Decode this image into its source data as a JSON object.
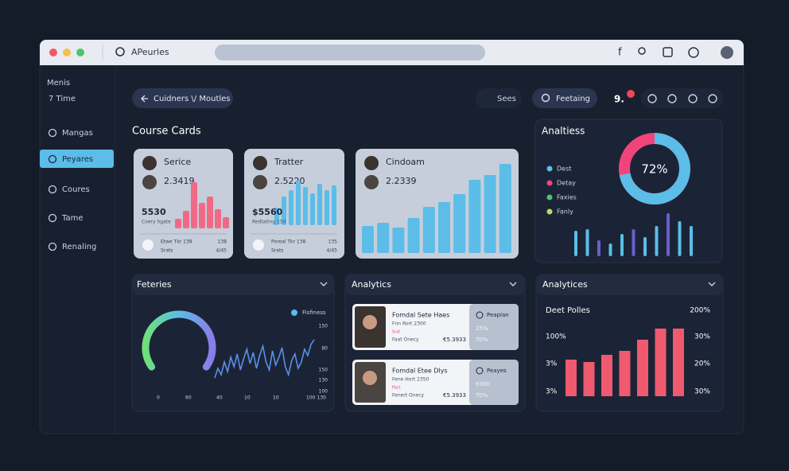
{
  "browser": {
    "address": "APeurles"
  },
  "sidebar": {
    "heading": [
      "Menis",
      "7 Time"
    ],
    "items": [
      "Mangas",
      "Peyares",
      "Coures",
      "Tame",
      "Renaling"
    ]
  },
  "header": {
    "back": "Cuidners \\/ Moutles",
    "search": "Sees",
    "filter": "Feetaing",
    "count": "9."
  },
  "course_cards": {
    "title": "Course Cards",
    "cards": [
      {
        "name": "Serice",
        "value": "2.3419",
        "stat": "5530",
        "caption": "Coery hgate",
        "footer": "Etwe Tkr 138",
        "footer_sub": "Srats",
        "meta": "138",
        "meta_sub": "4/45",
        "bars": [
          12,
          22,
          58,
          32,
          40,
          24,
          14
        ]
      },
      {
        "name": "Tratter",
        "value": "2.5220",
        "stat": "$5560",
        "caption": "Redtating 150",
        "footer": "Poreal Tkr 138",
        "footer_sub": "Srats",
        "meta": "135",
        "meta_sub": "4/45",
        "bars": [
          22,
          36,
          44,
          56,
          48,
          40,
          52,
          44,
          50
        ]
      },
      {
        "name": "Cindoam",
        "value": "2.2339",
        "bars": [
          34,
          38,
          32,
          44,
          58,
          64,
          74,
          92,
          98,
          112
        ]
      }
    ]
  },
  "analytics": {
    "title": "Analtiess",
    "donut": {
      "value": 72,
      "value_label": "72%"
    },
    "legend": [
      "Dest",
      "Detay",
      "Faxies",
      "Fanly"
    ],
    "bars": [
      32,
      34,
      20,
      16,
      28,
      34,
      24,
      38,
      54,
      44,
      38
    ]
  },
  "trends": {
    "title": "Feteries",
    "legend": "Fisfiness",
    "line": [
      10,
      22,
      14,
      30,
      18,
      36,
      24,
      40,
      20,
      34,
      46,
      28,
      42,
      22,
      38,
      50,
      30,
      20,
      44,
      26,
      36,
      48,
      24,
      14,
      32,
      40,
      22,
      30,
      46,
      38,
      52,
      58
    ],
    "x_labels": [
      "0",
      "60",
      "40",
      "10",
      "10",
      "100",
      "130"
    ],
    "y_labels": [
      "150",
      "80",
      "150",
      "130",
      "100"
    ]
  },
  "list": {
    "title": "Analytics",
    "items": [
      {
        "title": "Fomdal Sete Haes",
        "sub": "Fnn Rort 2300",
        "tag": "Srat",
        "meta": "Faat Onecy",
        "price": "€5.3933",
        "badge": "Peapian",
        "stat": "25%",
        "stat_sub": "T0%"
      },
      {
        "title": "Fomdal Etee Dlys",
        "sub": "Fene Hort 2350",
        "tag": "Pact",
        "meta": "Fenert Onecy",
        "price": "€5.3933",
        "badge": "Peayes",
        "stat": "€080",
        "stat_sub": "T0%"
      }
    ]
  },
  "performance": {
    "title": "Analytices",
    "subtitle": "Deet Polles",
    "left_labels": [
      "100%",
      "3%",
      "3%"
    ],
    "right_labels": [
      "200%",
      "30%",
      "20%",
      "30%"
    ],
    "bars": [
      46,
      43,
      52,
      57,
      71,
      85,
      85
    ]
  }
}
